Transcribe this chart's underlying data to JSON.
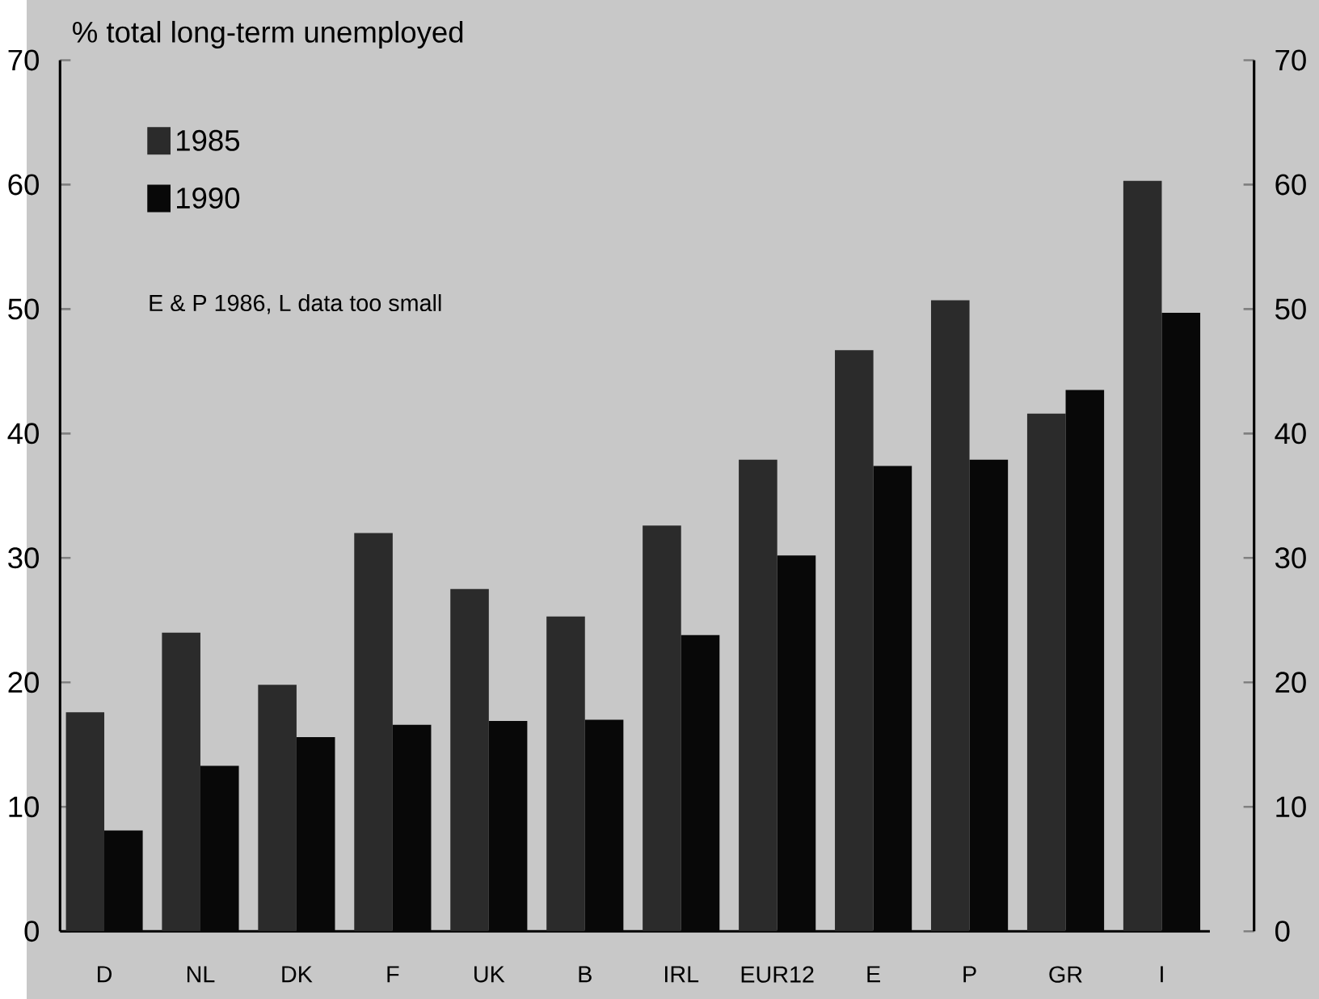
{
  "chart_data": {
    "type": "bar",
    "ylabel": "% total long-term unemployed",
    "categories": [
      "D",
      "NL",
      "DK",
      "F",
      "UK",
      "B",
      "IRL",
      "EUR12",
      "E",
      "P",
      "GR",
      "I"
    ],
    "series": [
      {
        "name": "1985",
        "color": "#2b2b2b",
        "values": [
          17.6,
          24.0,
          19.8,
          32.0,
          27.5,
          25.3,
          32.6,
          37.9,
          46.7,
          50.7,
          41.6,
          60.3
        ]
      },
      {
        "name": "1990",
        "color": "#080808",
        "values": [
          8.1,
          13.3,
          15.6,
          16.6,
          16.9,
          17.0,
          23.8,
          30.2,
          37.4,
          37.9,
          43.5,
          49.7
        ]
      }
    ],
    "ylim": [
      0,
      70
    ],
    "yticks": [
      0,
      10,
      20,
      30,
      40,
      50,
      60,
      70
    ],
    "y2lim": [
      0,
      70
    ],
    "y2ticks": [
      0,
      10,
      20,
      30,
      40,
      50,
      60,
      70
    ],
    "legend": "top left",
    "grid": false,
    "annotations": [
      "E & P 1986, L data too small"
    ]
  }
}
